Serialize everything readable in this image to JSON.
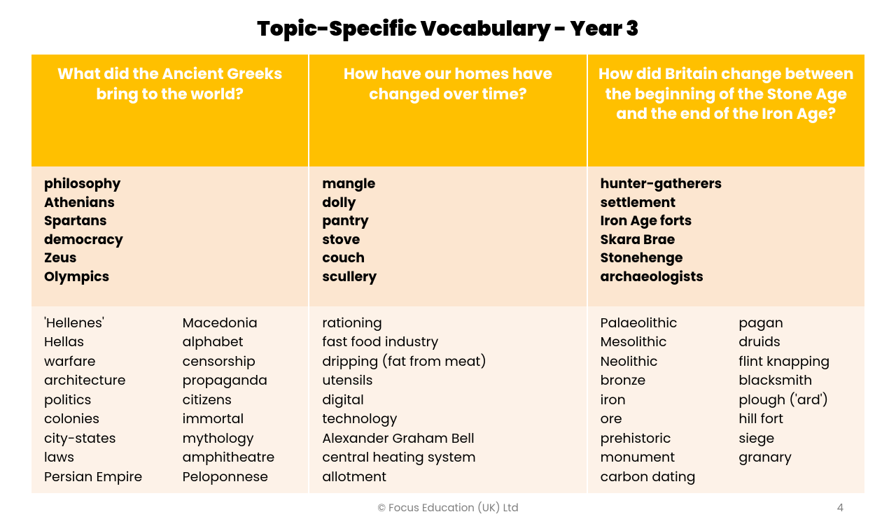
{
  "title": "Topic-Specific Vocabulary - Year 3",
  "colors": {
    "header_bg": "#ffc000",
    "header_text": "#ffffff",
    "bold_row_bg": "#fce6d0",
    "sub_row_bg": "#fdf2e8",
    "text": "#000000",
    "footer_text": "#808080"
  },
  "typography": {
    "title_fontsize": 30,
    "header_fontsize": 22,
    "body_fontsize": 19,
    "title_weight": 900,
    "header_weight": 700
  },
  "columns": [
    {
      "question": "What did the Ancient Greeks bring to the world?",
      "bold_terms": "philosophy\nAthenians\nSpartans\ndemocracy\nZeus\nOlympics",
      "sub_left": "'Hellenes'\nHellas\nwarfare\narchitecture\npolitics\ncolonies\ncity-states\nlaws\nPersian Empire",
      "sub_right": "Macedonia\nalphabet\ncensorship\npropaganda\ncitizens\nimmortal\nmythology\namphitheatre\nPeloponnese"
    },
    {
      "question": "How have our homes have changed over time?",
      "bold_terms": "mangle\ndolly\npantry\nstove\ncouch\nscullery",
      "sub_single": "rationing\nfast food industry\ndripping (fat from meat)\nutensils\ndigital\ntechnology\nAlexander Graham Bell\ncentral heating system\nallotment"
    },
    {
      "question": "How did Britain change between the beginning of the Stone Age and the end of the Iron Age?",
      "bold_terms": "hunter-gatherers\nsettlement\nIron Age forts\nSkara Brae\nStonehenge\narchaeologists",
      "sub_left": "Palaeolithic\nMesolithic\nNeolithic\nbronze\niron\nore\nprehistoric\nmonument\ncarbon dating",
      "sub_right": "pagan\ndruids\nflint knapping\nblacksmith\nplough ('ard')\nhill fort\nsiege\ngranary"
    }
  ],
  "footer": {
    "copyright": "© Focus Education (UK) Ltd",
    "page": "4"
  }
}
